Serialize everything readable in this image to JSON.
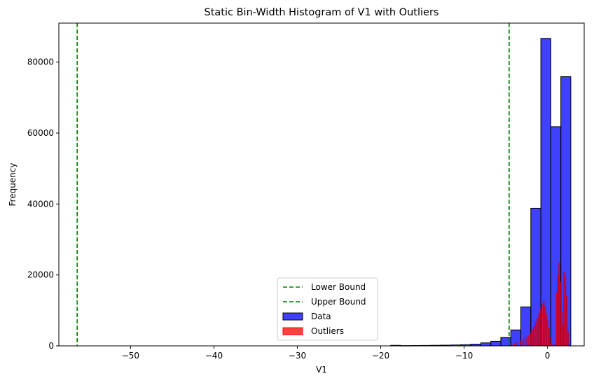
{
  "chart_data": {
    "type": "bar",
    "title": "Static Bin-Width Histogram of V1 with Outliers",
    "xlabel": "V1",
    "ylabel": "Frequency",
    "xlim": [
      -58.6,
      4.4
    ],
    "ylim": [
      0,
      91000
    ],
    "xticks": [
      -50,
      -40,
      -30,
      -20,
      -10,
      0
    ],
    "xtick_labels": [
      "−50",
      "−40",
      "−30",
      "−20",
      "−10",
      "0"
    ],
    "yticks": [
      0,
      20000,
      40000,
      60000,
      80000
    ],
    "ytick_labels": [
      "0",
      "20000",
      "40000",
      "60000",
      "80000"
    ],
    "grid": false,
    "legend_position": "lower center",
    "colors": {
      "data": "#0000ff",
      "outliers": "#ff0000",
      "bounds": "#008000",
      "bar_edge": "#000000"
    },
    "reference_lines": [
      {
        "name": "Lower Bound",
        "x": -56.4,
        "style": "dashed",
        "color": "#008000"
      },
      {
        "name": "Upper Bound",
        "x": -4.6,
        "style": "dashed",
        "color": "#008000"
      }
    ],
    "series": [
      {
        "name": "Data",
        "bins": [
          {
            "x0": -18.8,
            "x1": -17.6,
            "value": 150
          },
          {
            "x0": -17.6,
            "x1": -16.4,
            "value": 80
          },
          {
            "x0": -16.4,
            "x1": -15.2,
            "value": 100
          },
          {
            "x0": -15.2,
            "x1": -14.0,
            "value": 120
          },
          {
            "x0": -14.0,
            "x1": -12.8,
            "value": 160
          },
          {
            "x0": -12.8,
            "x1": -11.6,
            "value": 200
          },
          {
            "x0": -11.6,
            "x1": -10.4,
            "value": 260
          },
          {
            "x0": -10.4,
            "x1": -9.2,
            "value": 350
          },
          {
            "x0": -9.2,
            "x1": -8.0,
            "value": 500
          },
          {
            "x0": -8.0,
            "x1": -6.8,
            "value": 850
          },
          {
            "x0": -6.8,
            "x1": -5.6,
            "value": 1300
          },
          {
            "x0": -5.6,
            "x1": -4.4,
            "value": 2400
          },
          {
            "x0": -4.4,
            "x1": -3.2,
            "value": 4500
          },
          {
            "x0": -3.2,
            "x1": -2.0,
            "value": 11000
          },
          {
            "x0": -2.0,
            "x1": -0.8,
            "value": 38800
          },
          {
            "x0": -0.8,
            "x1": 0.4,
            "value": 86700
          },
          {
            "x0": 0.4,
            "x1": 1.6,
            "value": 61800
          },
          {
            "x0": 1.6,
            "x1": 2.8,
            "value": 75900
          }
        ]
      },
      {
        "name": "Outliers",
        "points": [
          {
            "x": -4.3,
            "value": 300
          },
          {
            "x": -3.9,
            "value": 600
          },
          {
            "x": -3.6,
            "value": 900
          },
          {
            "x": -3.2,
            "value": 1300
          },
          {
            "x": -2.9,
            "value": 1700
          },
          {
            "x": -2.6,
            "value": 2400
          },
          {
            "x": -2.3,
            "value": 3000
          },
          {
            "x": -2.0,
            "value": 3700
          },
          {
            "x": -1.8,
            "value": 4600
          },
          {
            "x": -1.6,
            "value": 5600
          },
          {
            "x": -1.4,
            "value": 6700
          },
          {
            "x": -1.2,
            "value": 7800
          },
          {
            "x": -1.0,
            "value": 9100
          },
          {
            "x": -0.8,
            "value": 10300
          },
          {
            "x": -0.6,
            "value": 11700
          },
          {
            "x": -0.45,
            "value": 12600
          },
          {
            "x": -0.3,
            "value": 11200
          },
          {
            "x": -0.15,
            "value": 9000
          },
          {
            "x": 0.0,
            "value": 7200
          },
          {
            "x": 0.15,
            "value": 5000
          },
          {
            "x": 0.3,
            "value": 2300
          },
          {
            "x": 0.5,
            "value": 600
          },
          {
            "x": 0.7,
            "value": 200
          },
          {
            "x": 0.95,
            "value": 300
          },
          {
            "x": 1.1,
            "value": 15000
          },
          {
            "x": 1.25,
            "value": 20000
          },
          {
            "x": 1.4,
            "value": 23500
          },
          {
            "x": 1.55,
            "value": 18000
          },
          {
            "x": 1.7,
            "value": 9500
          },
          {
            "x": 1.85,
            "value": 6000
          },
          {
            "x": 2.0,
            "value": 20800
          },
          {
            "x": 2.15,
            "value": 19500
          },
          {
            "x": 2.3,
            "value": 14000
          },
          {
            "x": 2.45,
            "value": 4000
          }
        ]
      }
    ]
  }
}
